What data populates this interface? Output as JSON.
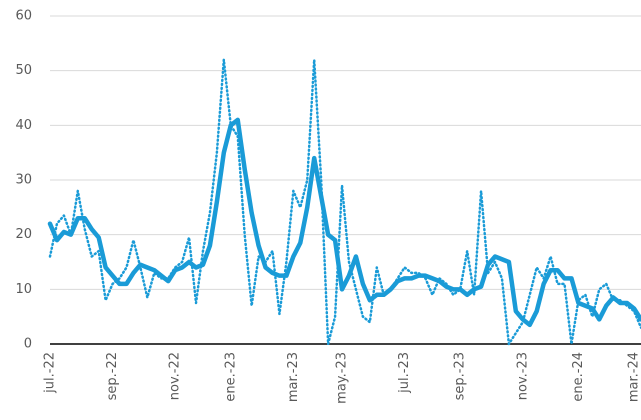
{
  "chart_data": {
    "type": "line",
    "categories": [
      "jul.-22",
      null,
      null,
      null,
      null,
      null,
      null,
      null,
      null,
      "sep.-22",
      null,
      null,
      null,
      null,
      null,
      null,
      null,
      null,
      "nov.-22",
      null,
      null,
      null,
      null,
      null,
      null,
      null,
      "ene.-23",
      null,
      null,
      null,
      null,
      null,
      null,
      null,
      null,
      "mar.-23",
      null,
      null,
      null,
      null,
      null,
      null,
      "may.-23",
      null,
      null,
      null,
      null,
      null,
      null,
      null,
      null,
      "jul.-23",
      null,
      null,
      null,
      null,
      null,
      null,
      null,
      "sep.-23",
      null,
      null,
      null,
      null,
      null,
      null,
      null,
      null,
      "nov.-23",
      null,
      null,
      null,
      null,
      null,
      null,
      null,
      "ene.-24",
      null,
      null,
      null,
      null,
      null,
      null,
      null,
      "mar.-24",
      null
    ],
    "series": [
      {
        "color": "#1a9bd7",
        "line_style": "solid",
        "values": [
          22,
          19,
          20.5,
          20,
          23,
          23,
          21,
          19.5,
          14,
          12.5,
          11,
          11,
          13,
          14.5,
          14,
          13.5,
          12.5,
          11.5,
          13.5,
          14,
          15,
          14,
          14.5,
          18,
          26,
          35,
          40,
          41,
          32,
          24,
          18,
          14,
          13,
          12.5,
          12.5,
          16,
          18.5,
          25,
          34,
          27,
          20,
          19,
          10,
          12.5,
          16,
          11,
          8,
          9,
          9,
          10,
          11.5,
          12,
          12,
          12.5,
          12.5,
          12,
          11.5,
          10.5,
          10,
          10,
          9,
          10,
          10.5,
          14.5,
          16,
          15.5,
          15,
          6,
          4.5,
          3.5,
          6,
          11,
          13.5,
          13.5,
          12,
          12,
          7.5,
          7,
          6.5,
          4.5,
          7,
          8.5,
          7.5,
          7.5,
          6.5,
          4.5
        ]
      },
      {
        "color": "#1a9bd7",
        "line_style": "dotted",
        "values": [
          16,
          22,
          23.5,
          20,
          28,
          21,
          16,
          17,
          8,
          11,
          12,
          14,
          19,
          14,
          8.5,
          13,
          12,
          12,
          14,
          15,
          19.5,
          7.5,
          17,
          24,
          35,
          52,
          40,
          38,
          20,
          7,
          16,
          15,
          17,
          5.5,
          15,
          28,
          25,
          30,
          52,
          30,
          0,
          5,
          29,
          15,
          10,
          5,
          4,
          14,
          9,
          10,
          12,
          14,
          13,
          13,
          12,
          9,
          12,
          11,
          9,
          10,
          17,
          9,
          28,
          13,
          15,
          12,
          0,
          2,
          4,
          9,
          14,
          12,
          16,
          11,
          11,
          0,
          8,
          9,
          5,
          10,
          11,
          8,
          8,
          7,
          6,
          3
        ]
      }
    ],
    "ylim": [
      0,
      60
    ],
    "yticks": [
      0,
      10,
      20,
      30,
      40,
      50,
      60
    ],
    "grid": true
  }
}
